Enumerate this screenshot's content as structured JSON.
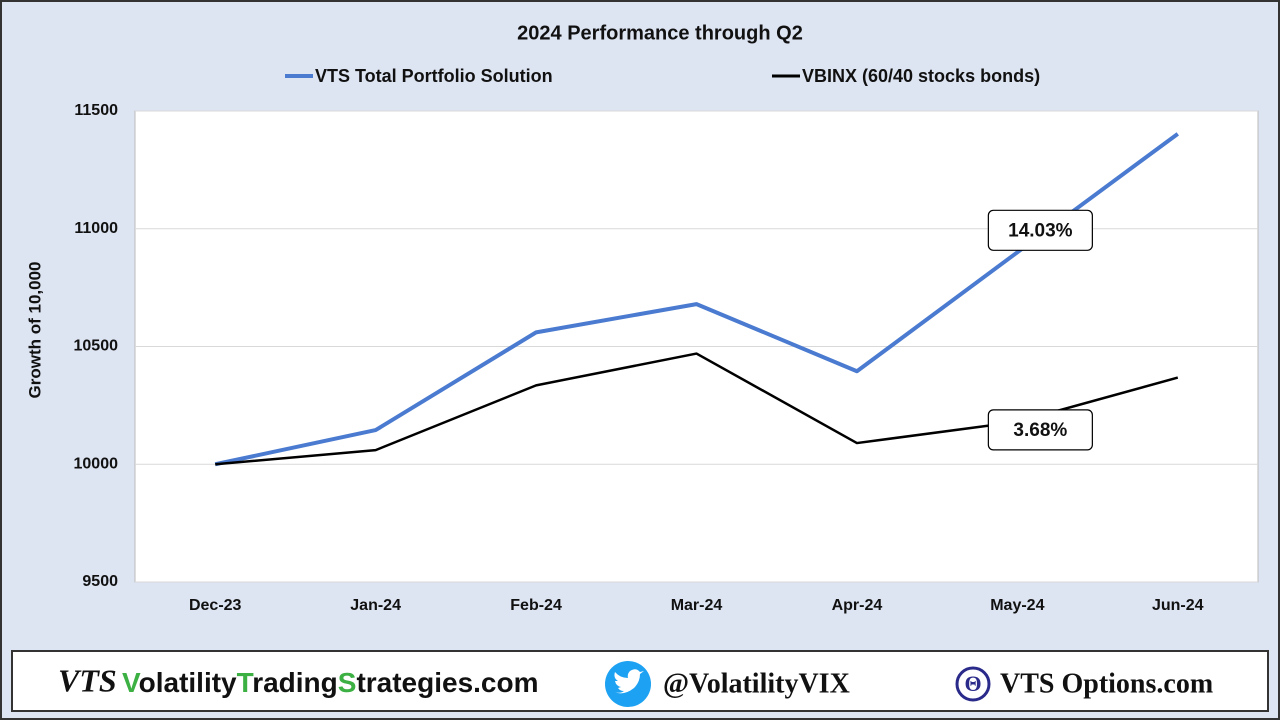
{
  "chart_data": {
    "type": "line",
    "title": "2024 Performance through Q2",
    "y_label": "Growth of 10,000",
    "categories": [
      "Dec-23",
      "Jan-24",
      "Feb-24",
      "Mar-24",
      "Apr-24",
      "May-24",
      "Jun-24"
    ],
    "series": [
      {
        "name": "VTS Total Portfolio Solution",
        "color": "#4a7bd0",
        "values": [
          10000,
          10145,
          10560,
          10680,
          10395,
          10900,
          11403
        ]
      },
      {
        "name": "VBINX  (60/40 stocks bonds)",
        "color": "#000000",
        "values": [
          10000,
          10060,
          10335,
          10470,
          10090,
          10180,
          10368
        ]
      }
    ],
    "annotations": [
      "14.03%",
      "3.68%"
    ],
    "ylim": [
      9500,
      11500
    ],
    "yticks": [
      9500,
      10000,
      10500,
      11000,
      11500
    ],
    "grid": true,
    "legend": "top"
  },
  "footer": {
    "logo": "VTS",
    "site_parts": [
      "V",
      "olatility",
      "T",
      "rading",
      "S",
      "trategies.com"
    ],
    "twitter": "@VolatilityVIX",
    "options": "VTS Options.com",
    "theta": "Θ"
  }
}
